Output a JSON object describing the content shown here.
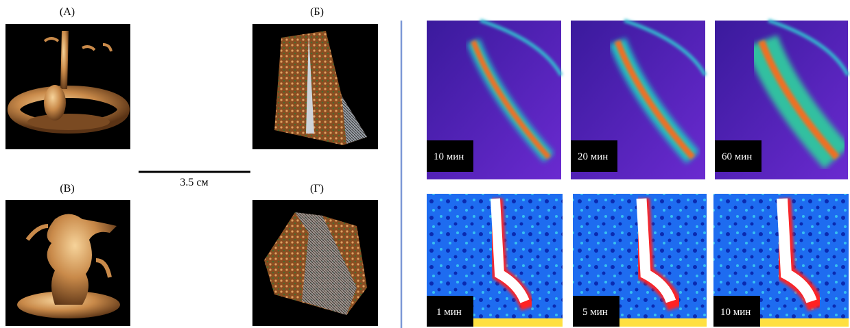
{
  "left_panels": {
    "labels": [
      "(А)",
      "(Б)",
      "(В)",
      "(Г)"
    ],
    "scale_bar": "3.5 см"
  },
  "right_panels": {
    "top_times": [
      "10 мин",
      "20 мин",
      "60 мин"
    ],
    "bottom_times": [
      "1 мин",
      "5 мин",
      "10 мин"
    ]
  }
}
